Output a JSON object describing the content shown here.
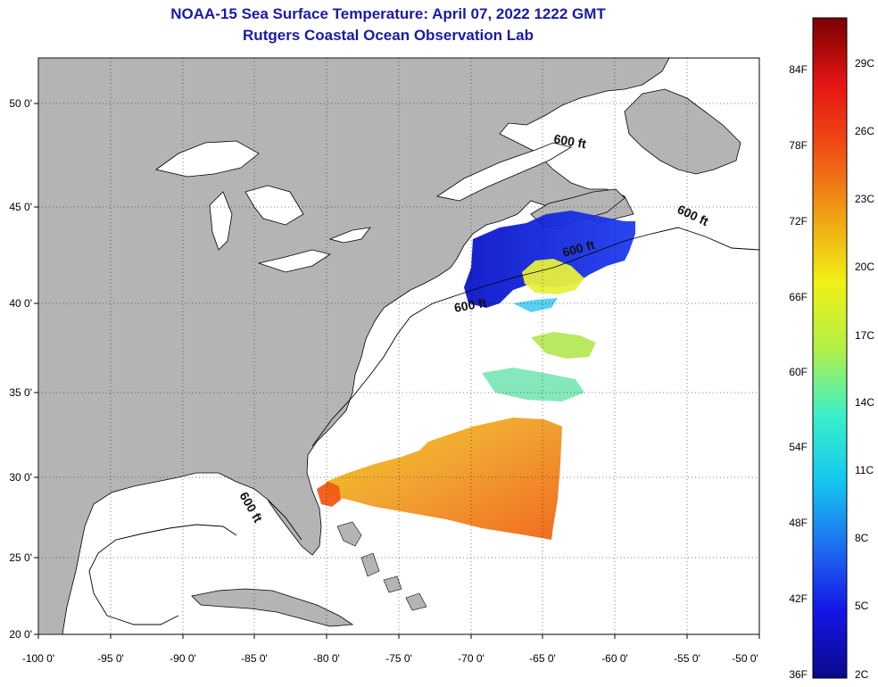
{
  "title": {
    "line1": "NOAA-15 Sea Surface Temperature:  April 07, 2022 1222 GMT",
    "line2": "Rutgers Coastal Ocean Observation Lab"
  },
  "map": {
    "lon_range": [
      -100,
      -50
    ],
    "lat_range": [
      20,
      52
    ],
    "lon_ticks": [
      "-100 0'",
      "-95 0'",
      "-90 0'",
      "-85 0'",
      "-80 0'",
      "-75 0'",
      "-70 0'",
      "-65 0'",
      "-60 0'",
      "-55 0'",
      "-50 0'"
    ],
    "lat_ticks": [
      "20 0'",
      "25 0'",
      "30 0'",
      "35 0'",
      "40 0'",
      "45 0'",
      "50 0'"
    ],
    "contour_label": "600 ft",
    "land_color": "#b4b4b4",
    "ocean_color": "#ffffff"
  },
  "colorbar": {
    "f_labels": [
      "36F",
      "42F",
      "48F",
      "54F",
      "60F",
      "66F",
      "72F",
      "78F",
      "84F"
    ],
    "c_labels": [
      "2C",
      "5C",
      "8C",
      "11C",
      "14C",
      "17C",
      "20C",
      "23C",
      "26C",
      "29C"
    ],
    "stops": [
      "#0a0a8c",
      "#1414e6",
      "#1e6ef0",
      "#14c8f0",
      "#3cf0c8",
      "#b4f046",
      "#f0f014",
      "#f0a014",
      "#f05014",
      "#e61414",
      "#780000"
    ]
  }
}
